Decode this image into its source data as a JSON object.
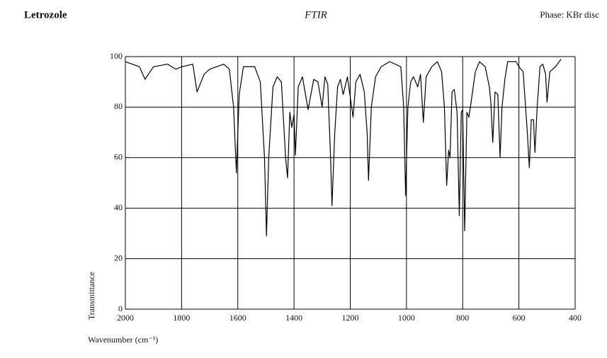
{
  "chart_data": {
    "type": "line",
    "title": "FTIR",
    "compound": "Letrozole",
    "phase": "Phase: KBr disc",
    "xlabel": "Wavenumber (cm⁻¹)",
    "ylabel": "Transmittance",
    "color": "#000000",
    "grid": true,
    "xlim": [
      2000,
      400
    ],
    "ylim": [
      0,
      100
    ],
    "xticks": [
      2000,
      1800,
      1600,
      1400,
      1200,
      1000,
      800,
      600,
      400
    ],
    "yticks": [
      0,
      20,
      40,
      60,
      80,
      100
    ],
    "x": [
      2000,
      1950,
      1930,
      1900,
      1850,
      1820,
      1800,
      1760,
      1745,
      1720,
      1700,
      1650,
      1630,
      1615,
      1605,
      1595,
      1580,
      1540,
      1520,
      1505,
      1498,
      1490,
      1475,
      1460,
      1445,
      1430,
      1423,
      1415,
      1408,
      1400,
      1395,
      1385,
      1370,
      1350,
      1330,
      1315,
      1300,
      1290,
      1280,
      1270,
      1265,
      1255,
      1245,
      1235,
      1225,
      1210,
      1195,
      1190,
      1180,
      1165,
      1150,
      1140,
      1135,
      1125,
      1110,
      1090,
      1060,
      1020,
      1010,
      1003,
      995,
      985,
      975,
      960,
      950,
      940,
      930,
      910,
      890,
      875,
      865,
      857,
      850,
      845,
      838,
      830,
      820,
      812,
      805,
      800,
      793,
      785,
      778,
      770,
      755,
      740,
      720,
      705,
      700,
      693,
      685,
      675,
      667,
      660,
      650,
      640,
      610,
      600,
      585,
      570,
      563,
      556,
      548,
      543,
      535,
      525,
      515,
      505,
      500,
      490,
      470,
      450
    ],
    "values": [
      98,
      96,
      91,
      96,
      97,
      95,
      96,
      97,
      86,
      93,
      95,
      97,
      95,
      80,
      54,
      85,
      96,
      96,
      90,
      60,
      29,
      60,
      88,
      92,
      90,
      60,
      52,
      78,
      72,
      77,
      61,
      88,
      92,
      79,
      91,
      90,
      80,
      92,
      89,
      60,
      41,
      70,
      88,
      91,
      85,
      92,
      80,
      76,
      90,
      93,
      86,
      70,
      51,
      80,
      92,
      96,
      98,
      96,
      80,
      45,
      80,
      90,
      92,
      88,
      93,
      74,
      92,
      96,
      98,
      94,
      80,
      49,
      63,
      60,
      86,
      87,
      78,
      37,
      78,
      79,
      31,
      78,
      76,
      82,
      94,
      98,
      96,
      88,
      82,
      66,
      86,
      85,
      60,
      80,
      91,
      98,
      98,
      96,
      94,
      70,
      56,
      75,
      75,
      62,
      80,
      96,
      97,
      93,
      82,
      94,
      96,
      99
    ]
  }
}
